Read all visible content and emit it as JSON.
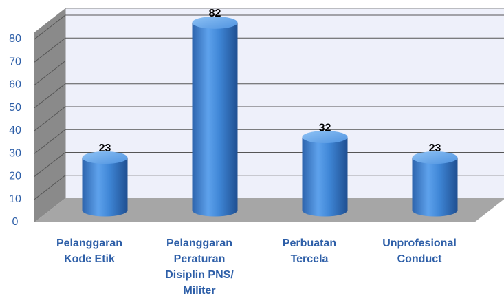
{
  "chart_data": {
    "type": "bar",
    "categories": [
      "Pelanggaran Kode Etik",
      "Pelanggaran Peraturan Disiplin PNS/ Militer",
      "Perbuatan Tercela",
      "Unprofesional Conduct"
    ],
    "values": [
      23,
      82,
      32,
      23
    ],
    "color": "#3d82d4",
    "ylim": [
      0,
      83
    ],
    "yticks": [
      0,
      10,
      20,
      30,
      40,
      50,
      60,
      70,
      80
    ],
    "grid": true
  }
}
